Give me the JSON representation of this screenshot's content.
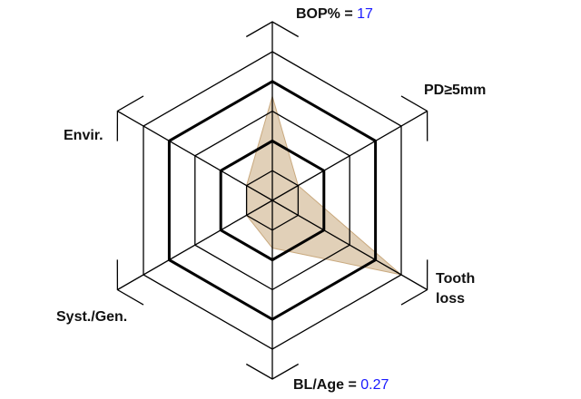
{
  "axes": [
    {
      "key": "bop",
      "label": "BOP%",
      "separator": " = ",
      "value": "17"
    },
    {
      "key": "pd",
      "label": "PD≥5mm"
    },
    {
      "key": "tooth",
      "label_line1": "Tooth",
      "label_line2": "loss"
    },
    {
      "key": "blage",
      "label": "BL/Age",
      "separator": " = ",
      "value": "0.27"
    },
    {
      "key": "syst",
      "label": "Syst./Gen."
    },
    {
      "key": "envir",
      "label": "Envir."
    }
  ],
  "ring_count": 5,
  "thick_rings": [
    2,
    4
  ],
  "risk_profile_levels": [
    3.5,
    1,
    5,
    1.6,
    1,
    1
  ],
  "colors": {
    "grid": "#000000",
    "fill": "#c9a97e",
    "value_text": "#1a1aff"
  }
}
